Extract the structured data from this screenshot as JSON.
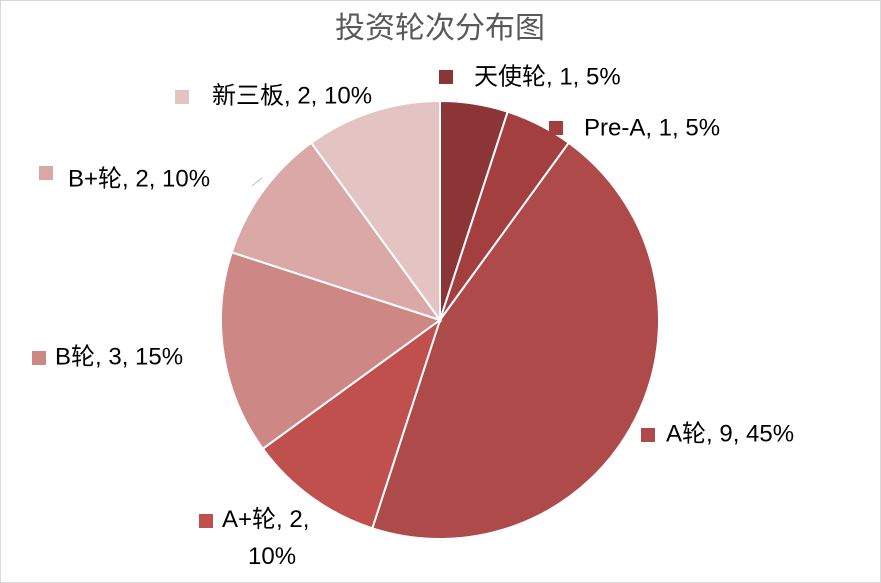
{
  "chart_data": {
    "type": "pie",
    "title": "投资轮次分布图",
    "categories": [
      "天使轮",
      "Pre-A",
      "A轮",
      "A+轮",
      "B轮",
      "B+轮",
      "新三板"
    ],
    "values": [
      1,
      1,
      9,
      2,
      3,
      2,
      2
    ],
    "value_labels": [
      "天使轮, 1, 5%",
      "Pre-A, 1, 5%",
      "A轮, 9, 45%",
      "A+轮, 2, 10%",
      "B轮, 3, 15%",
      "B+轮, 2, 10%",
      "新三板, 2, 10%"
    ],
    "colors": [
      "#8b3536",
      "#a33f3f",
      "#ae4a49",
      "#c0504d",
      "#cd8785",
      "#d9a8a7",
      "#e4c4c3"
    ]
  }
}
